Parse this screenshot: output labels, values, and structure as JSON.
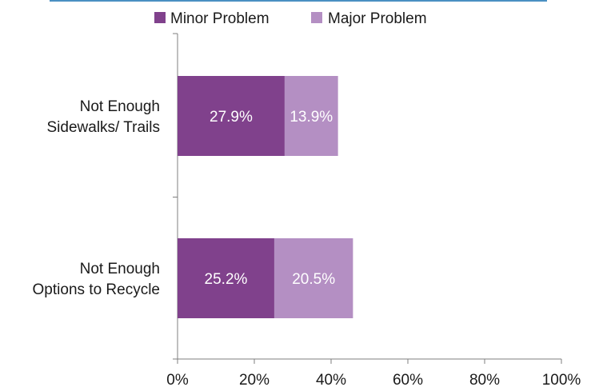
{
  "chart_data": {
    "type": "bar",
    "orientation": "horizontal",
    "stacked": true,
    "categories": [
      "Not Enough Sidewalks/ Trails",
      "Not Enough Options to Recycle"
    ],
    "category_lines": [
      [
        "Not Enough",
        "Sidewalks/ Trails"
      ],
      [
        "Not Enough",
        "Options to Recycle"
      ]
    ],
    "series": [
      {
        "name": "Minor Problem",
        "values": [
          27.9,
          25.2
        ],
        "labels": [
          "27.9%",
          "25.2%"
        ],
        "color": "#80418c"
      },
      {
        "name": "Major Problem",
        "values": [
          13.9,
          20.5
        ],
        "labels": [
          "13.9%",
          "20.5%"
        ],
        "color": "#b48fc3"
      }
    ],
    "xlim": [
      0,
      100
    ],
    "x_ticks": [
      "0%",
      "20%",
      "40%",
      "60%",
      "80%",
      "100%"
    ],
    "legend_position": "top",
    "grid": false,
    "axis_color": "#7f7f7f",
    "top_rule_color": "#4a90c2"
  }
}
